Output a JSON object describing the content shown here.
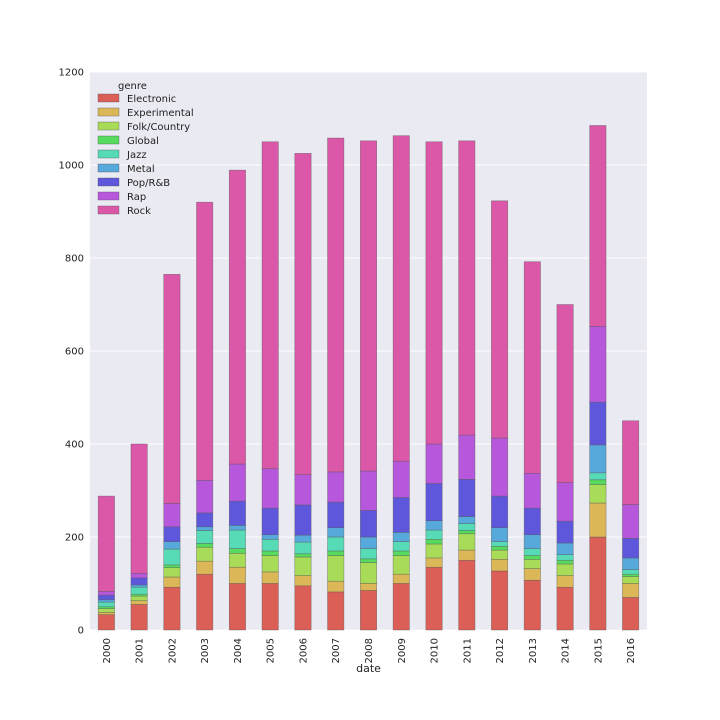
{
  "chart_data": {
    "type": "bar",
    "stacked": true,
    "title": "",
    "xlabel": "date",
    "ylabel": "",
    "ylim": [
      0,
      1200
    ],
    "yticks": [
      0,
      200,
      400,
      600,
      800,
      1000,
      1200
    ],
    "grid": true,
    "legend": {
      "title": "genre",
      "position": "top-left"
    },
    "categories": [
      "2000",
      "2001",
      "2002",
      "2003",
      "2004",
      "2005",
      "2006",
      "2007",
      "2008",
      "2009",
      "2010",
      "2011",
      "2012",
      "2013",
      "2014",
      "2015",
      "2016"
    ],
    "series": [
      {
        "name": "Electronic",
        "color": "#db5f57",
        "values": [
          33,
          55,
          92,
          120,
          100,
          100,
          95,
          82,
          85,
          100,
          135,
          150,
          127,
          107,
          92,
          200,
          70
        ]
      },
      {
        "name": "Experimental",
        "color": "#dbb757",
        "values": [
          5,
          8,
          22,
          28,
          35,
          25,
          22,
          23,
          15,
          20,
          20,
          22,
          25,
          25,
          25,
          73,
          30
        ]
      },
      {
        "name": "Folk/Country",
        "color": "#a8db57",
        "values": [
          8,
          10,
          20,
          30,
          30,
          35,
          40,
          55,
          45,
          40,
          30,
          35,
          20,
          20,
          25,
          40,
          15
        ]
      },
      {
        "name": "Global",
        "color": "#57db5f",
        "values": [
          4,
          4,
          6,
          8,
          10,
          10,
          7,
          10,
          8,
          10,
          10,
          7,
          8,
          8,
          8,
          10,
          5
        ]
      },
      {
        "name": "Jazz",
        "color": "#57dbb7",
        "values": [
          10,
          15,
          34,
          28,
          40,
          25,
          25,
          30,
          22,
          20,
          20,
          15,
          10,
          15,
          12,
          15,
          10
        ]
      },
      {
        "name": "Metal",
        "color": "#57a8db",
        "values": [
          5,
          5,
          16,
          8,
          10,
          10,
          15,
          20,
          25,
          20,
          20,
          15,
          30,
          30,
          25,
          60,
          25
        ]
      },
      {
        "name": "Pop/R&B",
        "color": "#5f57db",
        "values": [
          10,
          15,
          32,
          30,
          52,
          57,
          65,
          55,
          57,
          75,
          80,
          80,
          68,
          57,
          47,
          92,
          42
        ]
      },
      {
        "name": "Rap",
        "color": "#b757db",
        "values": [
          8,
          10,
          50,
          70,
          80,
          85,
          65,
          65,
          85,
          78,
          85,
          95,
          125,
          75,
          83,
          163,
          73
        ]
      },
      {
        "name": "Rock",
        "color": "#db57a8",
        "values": [
          205,
          278,
          493,
          598,
          632,
          703,
          691,
          718,
          710,
          700,
          650,
          633,
          510,
          455,
          383,
          432,
          180
        ]
      }
    ]
  }
}
